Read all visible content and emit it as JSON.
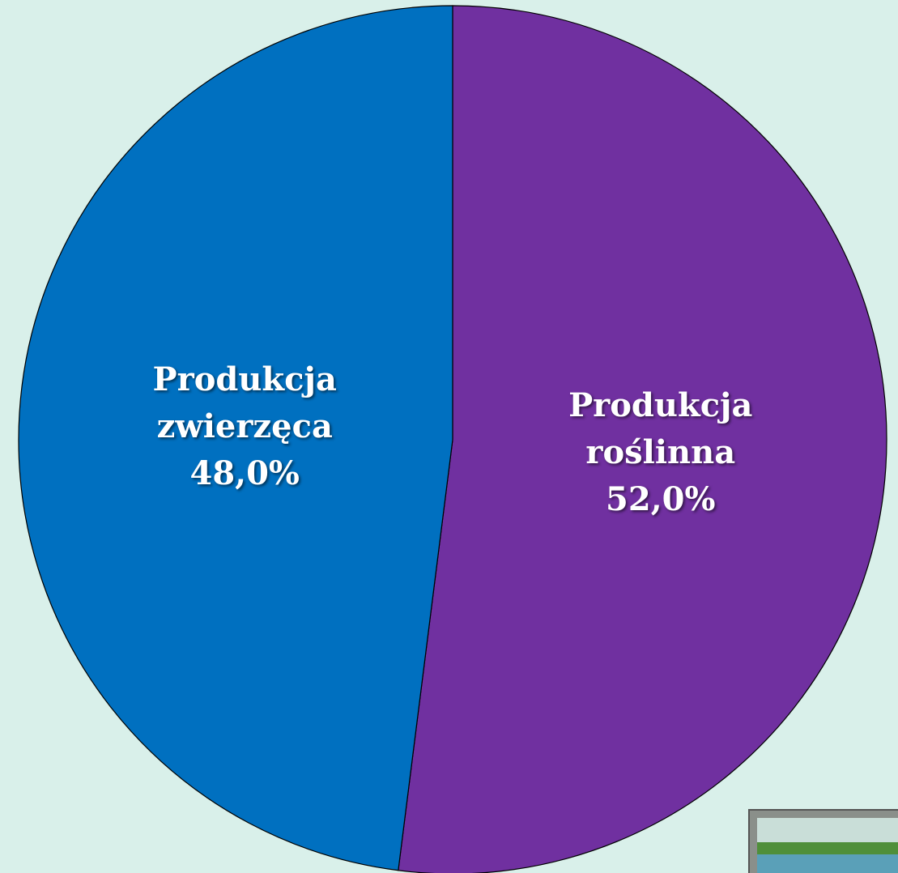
{
  "chart_data": {
    "type": "pie",
    "categories": [
      "Produkcja roślinna",
      "Produkcja zwierzęca"
    ],
    "values": [
      52,
      48
    ],
    "value_labels": [
      "52,0%",
      "48,0%"
    ],
    "colors": [
      "#7030a0",
      "#0070c0"
    ]
  }
}
